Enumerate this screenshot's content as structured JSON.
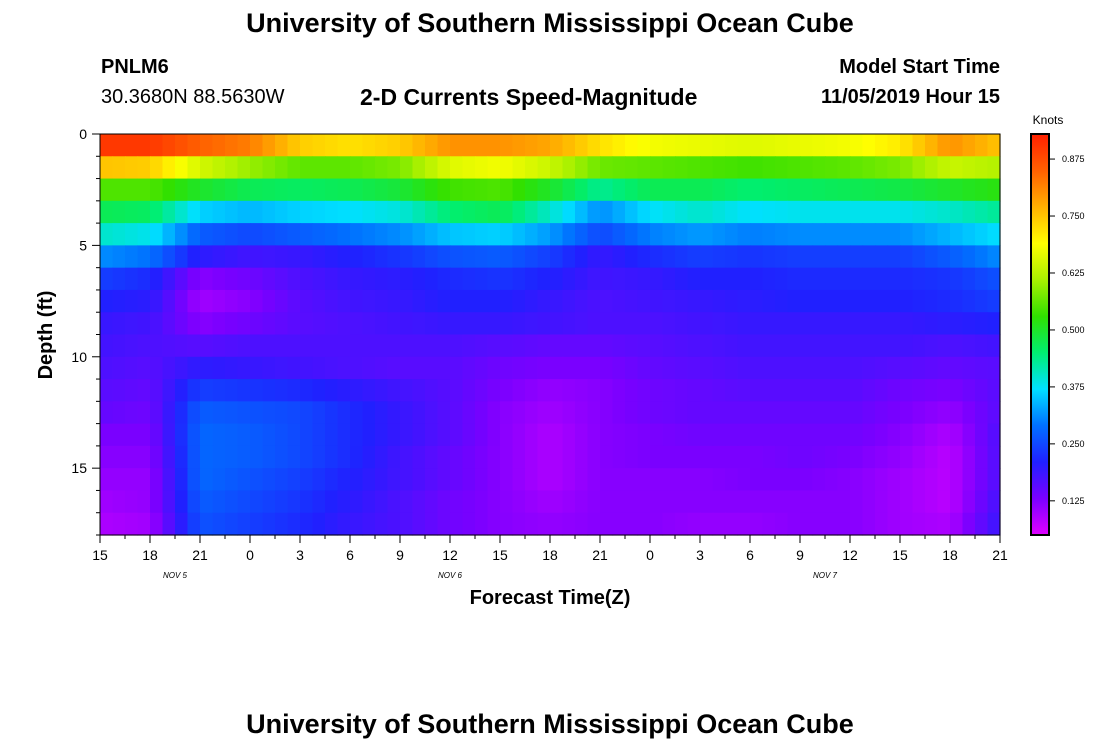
{
  "header": {
    "title": "University of Southern Mississippi Ocean Cube",
    "station_id": "PNLM6",
    "station_coords": "30.3680N 88.5630W",
    "plot_title": "2-D Currents Speed-Magnitude",
    "start_label": "Model Start Time",
    "start_value": "11/05/2019 Hour 15"
  },
  "footer": {
    "title": "University of Southern Mississippi Ocean Cube"
  },
  "chart_data": {
    "type": "heatmap",
    "title": "2-D Currents Speed-Magnitude",
    "xlabel": "Forecast Time(Z)",
    "ylabel": "Depth (ft)",
    "x_tick_labels": [
      "15",
      "18",
      "21",
      "0",
      "3",
      "6",
      "9",
      "12",
      "15",
      "18",
      "21",
      "0",
      "3",
      "6",
      "9",
      "12",
      "15",
      "18",
      "21"
    ],
    "x_range_hours": [
      0,
      54
    ],
    "day_labels": [
      {
        "text": "NOV 5",
        "hour": 4.5
      },
      {
        "text": "NOV 6",
        "hour": 21
      },
      {
        "text": "NOV 7",
        "hour": 43.5
      }
    ],
    "y_ticks": [
      0,
      5,
      10,
      15
    ],
    "y_range": [
      0,
      18
    ],
    "y_reversed": true,
    "colorbar": {
      "units": "Knots",
      "ticks": [
        0.125,
        0.25,
        0.375,
        0.5,
        0.625,
        0.75,
        0.875
      ],
      "tick_labels": [
        "0.125",
        "0.250",
        "0.375",
        "0.500",
        "0.625",
        "0.750",
        "0.875"
      ],
      "range": [
        0.05,
        0.93
      ],
      "colors": [
        "#e000ff",
        "#7a00ff",
        "#2020ff",
        "#0070ff",
        "#00e0ff",
        "#00ee70",
        "#30e000",
        "#a8f000",
        "#ffff00",
        "#ffb000",
        "#ff6000",
        "#ff2000"
      ]
    },
    "depth_levels_ft": [
      0.5,
      1.5,
      2.5,
      3.5,
      4.5,
      5.5,
      6.5,
      7.5,
      8.5,
      9.5,
      10.5,
      11.5,
      12.5,
      13.5,
      14.5,
      15.5,
      16.5,
      17.5
    ],
    "time_hours": [
      0,
      3,
      6,
      9,
      12,
      15,
      18,
      21,
      24,
      27,
      30,
      33,
      36,
      39,
      42,
      45,
      48,
      51,
      54
    ],
    "values": [
      [
        0.9,
        0.9,
        0.85,
        0.82,
        0.74,
        0.72,
        0.74,
        0.8,
        0.8,
        0.78,
        0.72,
        0.68,
        0.67,
        0.66,
        0.67,
        0.68,
        0.71,
        0.8,
        0.75
      ],
      [
        0.75,
        0.74,
        0.65,
        0.6,
        0.56,
        0.56,
        0.58,
        0.66,
        0.68,
        0.64,
        0.57,
        0.56,
        0.55,
        0.54,
        0.55,
        0.56,
        0.58,
        0.64,
        0.62
      ],
      [
        0.55,
        0.55,
        0.5,
        0.47,
        0.46,
        0.47,
        0.49,
        0.54,
        0.55,
        0.5,
        0.43,
        0.47,
        0.47,
        0.45,
        0.46,
        0.47,
        0.48,
        0.5,
        0.52
      ],
      [
        0.47,
        0.46,
        0.36,
        0.34,
        0.36,
        0.37,
        0.39,
        0.45,
        0.47,
        0.4,
        0.31,
        0.37,
        0.4,
        0.37,
        0.38,
        0.38,
        0.38,
        0.4,
        0.43
      ],
      [
        0.4,
        0.38,
        0.27,
        0.25,
        0.27,
        0.29,
        0.31,
        0.35,
        0.36,
        0.32,
        0.25,
        0.3,
        0.32,
        0.3,
        0.31,
        0.31,
        0.31,
        0.34,
        0.37
      ],
      [
        0.31,
        0.29,
        0.2,
        0.18,
        0.19,
        0.21,
        0.23,
        0.26,
        0.27,
        0.24,
        0.19,
        0.22,
        0.24,
        0.23,
        0.24,
        0.24,
        0.24,
        0.27,
        0.31
      ],
      [
        0.24,
        0.22,
        0.12,
        0.14,
        0.17,
        0.19,
        0.2,
        0.22,
        0.23,
        0.21,
        0.18,
        0.19,
        0.21,
        0.21,
        0.22,
        0.22,
        0.22,
        0.23,
        0.26
      ],
      [
        0.21,
        0.2,
        0.1,
        0.12,
        0.16,
        0.18,
        0.19,
        0.21,
        0.21,
        0.19,
        0.17,
        0.18,
        0.19,
        0.2,
        0.21,
        0.21,
        0.21,
        0.22,
        0.24
      ],
      [
        0.19,
        0.18,
        0.12,
        0.14,
        0.16,
        0.17,
        0.18,
        0.19,
        0.19,
        0.18,
        0.17,
        0.17,
        0.18,
        0.19,
        0.19,
        0.19,
        0.19,
        0.2,
        0.21
      ],
      [
        0.18,
        0.17,
        0.16,
        0.17,
        0.17,
        0.17,
        0.17,
        0.17,
        0.16,
        0.15,
        0.15,
        0.16,
        0.17,
        0.18,
        0.18,
        0.18,
        0.18,
        0.17,
        0.18
      ],
      [
        0.17,
        0.16,
        0.2,
        0.19,
        0.18,
        0.17,
        0.16,
        0.16,
        0.14,
        0.13,
        0.13,
        0.15,
        0.16,
        0.17,
        0.17,
        0.17,
        0.16,
        0.15,
        0.16
      ],
      [
        0.16,
        0.15,
        0.24,
        0.23,
        0.22,
        0.2,
        0.18,
        0.16,
        0.13,
        0.11,
        0.12,
        0.14,
        0.15,
        0.16,
        0.16,
        0.16,
        0.14,
        0.13,
        0.16
      ],
      [
        0.15,
        0.14,
        0.27,
        0.26,
        0.25,
        0.22,
        0.19,
        0.16,
        0.12,
        0.1,
        0.12,
        0.14,
        0.15,
        0.15,
        0.15,
        0.15,
        0.13,
        0.11,
        0.16
      ],
      [
        0.13,
        0.13,
        0.28,
        0.27,
        0.25,
        0.22,
        0.19,
        0.16,
        0.12,
        0.09,
        0.12,
        0.13,
        0.14,
        0.14,
        0.14,
        0.14,
        0.12,
        0.09,
        0.17
      ],
      [
        0.12,
        0.12,
        0.28,
        0.27,
        0.25,
        0.22,
        0.18,
        0.15,
        0.12,
        0.09,
        0.12,
        0.13,
        0.13,
        0.13,
        0.14,
        0.13,
        0.11,
        0.08,
        0.17
      ],
      [
        0.11,
        0.11,
        0.28,
        0.26,
        0.24,
        0.21,
        0.18,
        0.15,
        0.12,
        0.09,
        0.12,
        0.12,
        0.12,
        0.13,
        0.13,
        0.12,
        0.1,
        0.08,
        0.17
      ],
      [
        0.1,
        0.11,
        0.27,
        0.25,
        0.23,
        0.2,
        0.17,
        0.14,
        0.12,
        0.1,
        0.12,
        0.12,
        0.12,
        0.12,
        0.12,
        0.12,
        0.1,
        0.08,
        0.18
      ],
      [
        0.09,
        0.1,
        0.26,
        0.24,
        0.22,
        0.19,
        0.17,
        0.14,
        0.12,
        0.11,
        0.12,
        0.12,
        0.11,
        0.11,
        0.12,
        0.12,
        0.1,
        0.09,
        0.19
      ]
    ]
  }
}
